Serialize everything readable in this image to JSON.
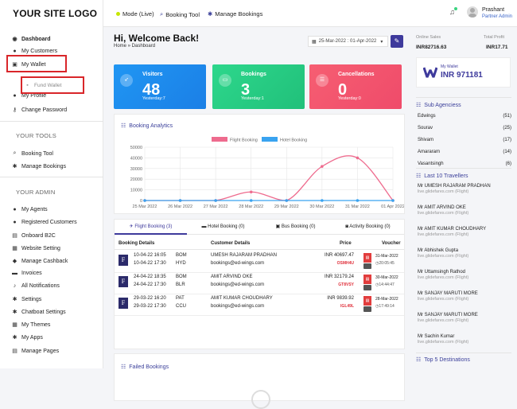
{
  "logo": "YOUR SITE LOGO",
  "sidebar": {
    "main_items": [
      {
        "label": "Dashboard",
        "icon": "dashboard-icon",
        "bold": true
      },
      {
        "label": "My Customers",
        "icon": "customers-icon"
      },
      {
        "label": "My Wallet",
        "icon": "wallet-icon"
      },
      {
        "label": "Fund Wallet",
        "icon": "fund-icon"
      },
      {
        "label": "My Profile",
        "icon": "profile-icon"
      },
      {
        "label": "Change Password",
        "icon": "key-icon"
      }
    ],
    "tools_title": "YOUR TOOLS",
    "tools": [
      {
        "label": "Booking Tool",
        "icon": "search-icon"
      },
      {
        "label": "Manage Bookings",
        "icon": "gear-icon"
      }
    ],
    "admin_title": "YOUR ADMIN",
    "admin": [
      {
        "label": "My Agents",
        "icon": "agents-icon"
      },
      {
        "label": "Registered Customers",
        "icon": "customers-icon"
      },
      {
        "label": "Onboard B2C",
        "icon": "onboard-icon"
      },
      {
        "label": "Website Setting",
        "icon": "website-icon"
      },
      {
        "label": "Manage Cashback",
        "icon": "cashback-icon"
      },
      {
        "label": "Invoices",
        "icon": "invoice-icon"
      },
      {
        "label": "All Notifications",
        "icon": "bell-icon"
      },
      {
        "label": "Settings",
        "icon": "gear-icon"
      },
      {
        "label": "Chatboat Settings",
        "icon": "chat-icon"
      },
      {
        "label": "My Themes",
        "icon": "theme-icon"
      },
      {
        "label": "My Apps",
        "icon": "apps-icon"
      },
      {
        "label": "Manage Pages",
        "icon": "pages-icon"
      }
    ]
  },
  "topbar": {
    "mode": "Mode (Live)",
    "booking_tool": "Booking Tool",
    "manage_bookings": "Manage Bookings",
    "user_name": "Prashant",
    "user_role": "Partner Admin"
  },
  "header": {
    "title": "Hi, Welcome Back!",
    "breadcrumb": "Home » Dashboard",
    "date_range": "25-Mar-2022 : 01-Apr-2022"
  },
  "cards": [
    {
      "title": "Visitors",
      "value": "48",
      "sub": "Yesterday:7",
      "color": "#1c8ff2"
    },
    {
      "title": "Bookings",
      "value": "3",
      "sub": "Yesterday:1",
      "color": "#2ed48a"
    },
    {
      "title": "Cancellations",
      "value": "0",
      "sub": "Yesterday:0",
      "color": "#f45a6d"
    }
  ],
  "analytics_title": "Booking Analytics",
  "chart_data": {
    "type": "line",
    "x": [
      "25 Mar 2022",
      "26 Mar 2022",
      "27 Mar 2022",
      "28 Mar 2022",
      "29 Mar 2022",
      "30 Mar 2022",
      "31 Mar 2022",
      "01 Apr 2022"
    ],
    "series": [
      {
        "name": "Flight Booking",
        "color": "#ee6b8e",
        "values": [
          0,
          0,
          0,
          8000,
          0,
          32000,
          40000,
          0
        ]
      },
      {
        "name": "Hotel Booking",
        "color": "#39a3f0",
        "values": [
          0,
          0,
          0,
          0,
          0,
          0,
          0,
          0
        ]
      }
    ],
    "yticks": [
      "50000",
      "40000",
      "30000",
      "20000",
      "10000",
      "0"
    ],
    "ylim": [
      0,
      50000
    ],
    "legend": "top"
  },
  "booking_tabs": [
    {
      "label": "Flight Booking (3)",
      "icon": "plane-icon"
    },
    {
      "label": "Hotel Booking (0)",
      "icon": "bed-icon"
    },
    {
      "label": "Bus Booking (0)",
      "icon": "bus-icon"
    },
    {
      "label": "Activity Booking (0)",
      "icon": "camera-icon"
    }
  ],
  "table_headers": [
    "Booking Details",
    "Customer Details",
    "Price",
    "Voucher"
  ],
  "bookings": [
    {
      "dep_time": "10-04-22 16:05",
      "arr_time": "10-04-22 17:30",
      "from": "BOM",
      "to": "HYD",
      "name": "UMESH RAJARAM PRADHAN",
      "email": "bookings@ed-wings.com",
      "price": "INR 40697.47",
      "pnr": "OSMH4U",
      "vdate": "31-Mar-2022",
      "vtime": "20:05:45"
    },
    {
      "dep_time": "24-04-22 18:35",
      "arr_time": "24-04-22 17:30",
      "from": "BOM",
      "to": "BLR",
      "name": "AMIT ARVIND OKE",
      "email": "bookings@ed-wings.com",
      "price": "INR 32179.24",
      "pnr": "GT8VSY",
      "vdate": "30-Mar-2022",
      "vtime": "14:44:47"
    },
    {
      "dep_time": "29-03-22 16:20",
      "arr_time": "29-03-22 17:30",
      "from": "PAT",
      "to": "CCU",
      "name": "AMIT KUMAR CHOUDHARY",
      "email": "bookings@ed-wings.com",
      "price": "INR 9839.92",
      "pnr": "IGL49L",
      "vdate": "28-Mar-2022",
      "vtime": "17:49:14"
    }
  ],
  "failed_title": "Failed Bookings",
  "right": {
    "online_sales_label": "Online Sales",
    "total_profit_label": "Total Profit",
    "online_sales": "INR82716.63",
    "total_profit": "INR17.71",
    "wallet_label": "My Wallet",
    "wallet_value": "INR 971181",
    "sub_title": "Sub Agenciess",
    "sub_agencies": [
      {
        "name": "Edwings",
        "count": "(51)"
      },
      {
        "name": "Sourav",
        "count": "(25)"
      },
      {
        "name": "Shivam",
        "count": "(17)"
      },
      {
        "name": "Amararam",
        "count": "(14)"
      },
      {
        "name": "Vasantsingh",
        "count": "(6)"
      }
    ],
    "trav_title": "Last 10 Travellers",
    "travellers": [
      {
        "name": "Mr UMESH RAJARAM PRADHAN",
        "sub": "live.glidefares.com (Flight)"
      },
      {
        "name": "Mr AMIT ARVIND OKE",
        "sub": "live.glidefares.com (Flight)"
      },
      {
        "name": "Mr AMIT KUMAR CHOUDHARY",
        "sub": "live.glidefares.com (Flight)"
      },
      {
        "name": "Mr Abhishek Gupta",
        "sub": "live.glidefares.com (Flight)"
      },
      {
        "name": "Mr Uttamsingh Rathod",
        "sub": "live.glidefares.com (Flight)"
      },
      {
        "name": "Mr SANJAY MARUTI MORE",
        "sub": "live.glidefares.com (Flight)"
      },
      {
        "name": "Mr SANJAY MARUTI MORE",
        "sub": "live.glidefares.com (Flight)"
      },
      {
        "name": "Mr Sachin Kumar",
        "sub": "live.glidefares.com (Flight)"
      }
    ],
    "top5_title": "Top 5 Destinations"
  }
}
